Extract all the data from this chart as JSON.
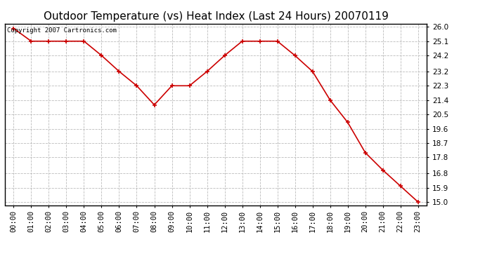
{
  "title": "Outdoor Temperature (vs) Heat Index (Last 24 Hours) 20070119",
  "copyright_text": "Copyright 2007 Cartronics.com",
  "x_labels": [
    "00:00",
    "01:00",
    "02:00",
    "03:00",
    "04:00",
    "05:00",
    "06:00",
    "07:00",
    "08:00",
    "09:00",
    "10:00",
    "11:00",
    "12:00",
    "13:00",
    "14:00",
    "15:00",
    "16:00",
    "17:00",
    "18:00",
    "19:00",
    "20:00",
    "21:00",
    "22:00",
    "23:00"
  ],
  "y_values": [
    25.9,
    25.1,
    25.1,
    25.1,
    25.1,
    24.2,
    23.2,
    22.3,
    21.1,
    22.3,
    22.3,
    23.2,
    24.2,
    25.1,
    25.1,
    25.1,
    24.2,
    23.2,
    21.4,
    20.0,
    18.1,
    17.0,
    16.0,
    15.0
  ],
  "y_ticks": [
    15.0,
    15.9,
    16.8,
    17.8,
    18.7,
    19.6,
    20.5,
    21.4,
    22.3,
    23.2,
    24.2,
    25.1,
    26.0
  ],
  "y_min": 14.8,
  "y_max": 26.2,
  "line_color": "#cc0000",
  "marker_color": "#cc0000",
  "bg_color": "#ffffff",
  "plot_bg_color": "#ffffff",
  "grid_color": "#bbbbbb",
  "title_fontsize": 11,
  "tick_fontsize": 7.5,
  "copyright_fontsize": 6.5
}
